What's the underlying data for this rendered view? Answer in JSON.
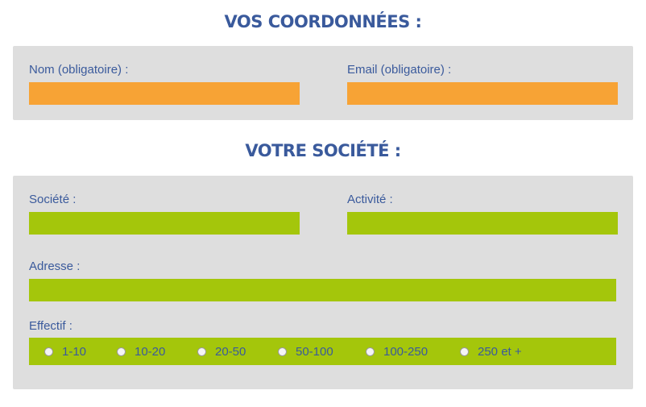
{
  "sections": {
    "coordonnees": {
      "title": "VOS COORDONNÉES :",
      "nom": {
        "label": "Nom (obligatoire) :",
        "value": ""
      },
      "email": {
        "label": "Email (obligatoire) :",
        "value": ""
      }
    },
    "societe": {
      "title": "VOTRE SOCIÉTÉ :",
      "societe": {
        "label": "Société :",
        "value": ""
      },
      "activite": {
        "label": "Activité :",
        "value": ""
      },
      "adresse": {
        "label": "Adresse :",
        "value": ""
      },
      "effectif": {
        "label": "Effectif :",
        "options": [
          "1-10",
          "10-20",
          "20-50",
          "50-100",
          "100-250",
          "250 et +"
        ],
        "selected": null
      }
    }
  },
  "colors": {
    "heading": "#3a5a9c",
    "panel": "#dedede",
    "field_required": "#f7a335",
    "field_optional": "#a4c60b"
  }
}
